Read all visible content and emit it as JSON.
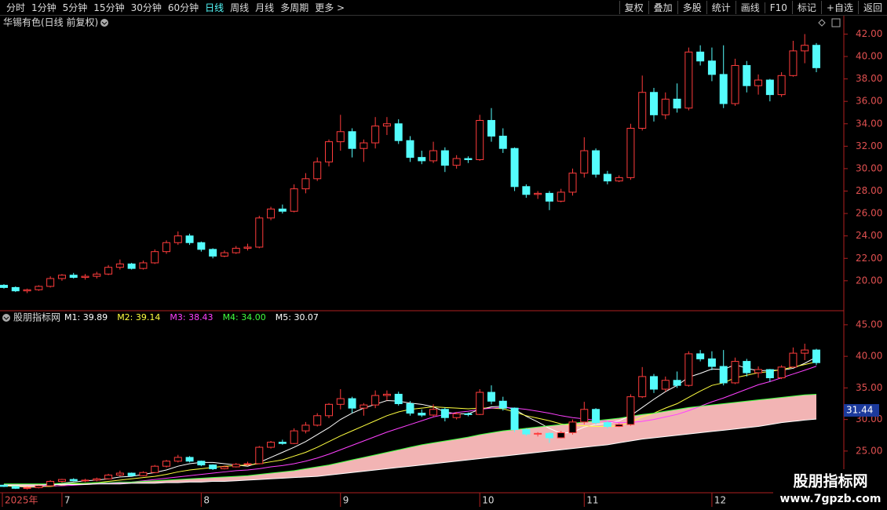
{
  "toolbar": {
    "left": [
      "分时",
      "1分钟",
      "5分钟",
      "15分钟",
      "30分钟",
      "60分钟",
      "日线",
      "周线",
      "月线",
      "多周期",
      "更多 >"
    ],
    "active": "日线",
    "right": [
      "复权",
      "叠加",
      "多股",
      "统计",
      "画线",
      "F10",
      "标记",
      "+自选",
      "返回"
    ]
  },
  "chart_data": [
    {
      "type": "candlestick",
      "title": "华锡有色(日线 前复权)",
      "up_color": "#ff3c3c",
      "down_color": "#54fcfc",
      "ylim": [
        17.4,
        43.5
      ],
      "yticks": [
        {
          "value": 20,
          "label": "20.00"
        },
        {
          "value": 22,
          "label": "22.00"
        },
        {
          "value": 24,
          "label": "24.00"
        },
        {
          "value": 26,
          "label": "26.00"
        },
        {
          "value": 28,
          "label": "28.00"
        },
        {
          "value": 30,
          "label": "30.00"
        },
        {
          "value": 32,
          "label": "32.00"
        },
        {
          "value": 34,
          "label": "34.00"
        },
        {
          "value": 36,
          "label": "36.00"
        },
        {
          "value": 38,
          "label": "38.00"
        },
        {
          "value": 40,
          "label": "40.00"
        },
        {
          "value": 42,
          "label": "42.00"
        }
      ],
      "categories": [
        "2025年",
        null,
        null,
        null,
        null,
        "7",
        null,
        null,
        null,
        null,
        null,
        null,
        null,
        null,
        null,
        null,
        null,
        "8",
        null,
        null,
        null,
        null,
        null,
        null,
        null,
        null,
        null,
        null,
        null,
        "9",
        null,
        null,
        null,
        null,
        null,
        null,
        null,
        null,
        null,
        null,
        null,
        "10",
        null,
        null,
        null,
        null,
        null,
        null,
        null,
        null,
        "11",
        null,
        null,
        null,
        null,
        null,
        null,
        null,
        null,
        null,
        null,
        "12",
        null,
        null,
        null,
        null,
        null,
        null,
        null,
        null,
        null
      ],
      "ohlc": [
        [
          19.6,
          19.7,
          19.3,
          19.4
        ],
        [
          19.4,
          19.5,
          19.0,
          19.1
        ],
        [
          19.1,
          19.3,
          18.9,
          19.2
        ],
        [
          19.2,
          19.6,
          19.1,
          19.5
        ],
        [
          19.5,
          20.4,
          19.4,
          20.2
        ],
        [
          20.2,
          20.6,
          20.0,
          20.5
        ],
        [
          20.5,
          20.7,
          20.2,
          20.3
        ],
        [
          20.3,
          20.6,
          20.1,
          20.4
        ],
        [
          20.4,
          20.8,
          20.2,
          20.6
        ],
        [
          20.6,
          21.4,
          20.5,
          21.2
        ],
        [
          21.2,
          21.9,
          21.0,
          21.5
        ],
        [
          21.5,
          21.6,
          21.0,
          21.1
        ],
        [
          21.1,
          21.8,
          21.0,
          21.6
        ],
        [
          21.6,
          22.8,
          21.5,
          22.6
        ],
        [
          22.6,
          23.6,
          22.4,
          23.4
        ],
        [
          23.4,
          24.4,
          23.2,
          24.0
        ],
        [
          24.0,
          24.2,
          23.2,
          23.4
        ],
        [
          23.4,
          23.5,
          22.6,
          22.8
        ],
        [
          22.8,
          22.9,
          22.0,
          22.2
        ],
        [
          22.2,
          22.7,
          22.1,
          22.5
        ],
        [
          22.5,
          23.1,
          22.4,
          22.9
        ],
        [
          22.9,
          23.3,
          22.7,
          23.0
        ],
        [
          23.0,
          25.8,
          22.9,
          25.6
        ],
        [
          25.6,
          26.6,
          25.4,
          26.4
        ],
        [
          26.4,
          26.8,
          26.0,
          26.2
        ],
        [
          26.2,
          28.6,
          26.1,
          28.2
        ],
        [
          28.2,
          29.6,
          27.8,
          29.1
        ],
        [
          29.1,
          31.0,
          28.9,
          30.6
        ],
        [
          30.6,
          32.6,
          30.2,
          32.4
        ],
        [
          32.4,
          34.8,
          31.6,
          33.3
        ],
        [
          33.3,
          33.6,
          31.0,
          31.8
        ],
        [
          31.8,
          32.6,
          30.6,
          32.3
        ],
        [
          32.3,
          34.6,
          31.8,
          33.8
        ],
        [
          33.8,
          34.6,
          33.0,
          34.0
        ],
        [
          34.0,
          34.4,
          32.2,
          32.5
        ],
        [
          32.5,
          32.9,
          30.6,
          31.0
        ],
        [
          31.0,
          31.6,
          30.4,
          30.7
        ],
        [
          30.7,
          32.4,
          30.5,
          31.6
        ],
        [
          31.6,
          31.9,
          29.7,
          30.3
        ],
        [
          30.3,
          31.2,
          30.0,
          30.9
        ],
        [
          30.9,
          31.1,
          30.5,
          30.8
        ],
        [
          30.8,
          34.8,
          30.7,
          34.3
        ],
        [
          34.3,
          35.4,
          32.4,
          32.9
        ],
        [
          32.9,
          33.6,
          31.4,
          31.8
        ],
        [
          31.8,
          31.9,
          28.0,
          28.4
        ],
        [
          28.4,
          28.6,
          27.4,
          27.7
        ],
        [
          27.7,
          28.0,
          27.3,
          27.8
        ],
        [
          27.8,
          28.0,
          26.3,
          27.1
        ],
        [
          27.1,
          28.2,
          27.0,
          27.9
        ],
        [
          27.9,
          30.0,
          27.6,
          29.6
        ],
        [
          29.6,
          32.8,
          29.2,
          31.6
        ],
        [
          31.6,
          31.8,
          29.2,
          29.5
        ],
        [
          29.5,
          29.8,
          28.6,
          28.9
        ],
        [
          28.9,
          29.4,
          28.8,
          29.2
        ],
        [
          29.2,
          34.0,
          29.0,
          33.6
        ],
        [
          33.6,
          38.3,
          33.4,
          36.8
        ],
        [
          36.8,
          37.2,
          34.2,
          34.8
        ],
        [
          34.8,
          36.8,
          34.4,
          36.2
        ],
        [
          36.2,
          37.6,
          35.0,
          35.4
        ],
        [
          35.4,
          40.8,
          35.2,
          40.4
        ],
        [
          40.4,
          41.0,
          39.2,
          39.6
        ],
        [
          39.6,
          40.8,
          37.8,
          38.4
        ],
        [
          38.4,
          41.0,
          35.4,
          35.8
        ],
        [
          35.8,
          39.8,
          35.6,
          39.2
        ],
        [
          39.2,
          39.6,
          36.8,
          37.4
        ],
        [
          37.4,
          38.4,
          36.6,
          37.9
        ],
        [
          37.9,
          38.0,
          36.0,
          36.6
        ],
        [
          36.6,
          38.6,
          36.4,
          38.3
        ],
        [
          38.3,
          41.4,
          38.2,
          40.5
        ],
        [
          40.5,
          42.0,
          39.4,
          41.0
        ],
        [
          41.0,
          41.2,
          38.6,
          39.0
        ]
      ]
    },
    {
      "type": "indicator",
      "title": "股朋指标网",
      "ylim": [
        18.4,
        47.1
      ],
      "yticks": [
        {
          "value": 25,
          "label": "25.00"
        },
        {
          "value": 30,
          "label": "30.00"
        },
        {
          "value": 35,
          "label": "35.00"
        },
        {
          "value": 40,
          "label": "40.00"
        },
        {
          "value": 45,
          "label": "45.00"
        }
      ],
      "value_tag": {
        "value": 31.44,
        "label": "31.44"
      },
      "series": [
        {
          "name": "M1: 39.89",
          "color": "#ffffff",
          "values": [
            19.5,
            19.4,
            19.3,
            19.3,
            19.5,
            19.9,
            20.1,
            20.3,
            20.4,
            20.6,
            20.9,
            21.0,
            21.3,
            21.6,
            22.0,
            22.6,
            23.0,
            23.2,
            23.2,
            23.0,
            22.8,
            22.6,
            23.2,
            24.0,
            24.8,
            25.6,
            26.5,
            27.6,
            28.7,
            30.0,
            31.0,
            31.8,
            32.4,
            33.0,
            32.9,
            32.6,
            32.4,
            32.0,
            31.2,
            30.9,
            30.9,
            31.6,
            32.0,
            32.1,
            31.6,
            30.5,
            29.6,
            28.6,
            27.8,
            28.0,
            28.8,
            29.2,
            29.4,
            29.8,
            30.6,
            31.9,
            33.2,
            34.4,
            35.4,
            36.7,
            37.3,
            38.0,
            37.9,
            38.7,
            38.1,
            37.7,
            37.8,
            37.8,
            38.1,
            38.9,
            39.89
          ]
        },
        {
          "name": "M2: 39.14",
          "color": "#ffff40",
          "values": [
            19.5,
            19.5,
            19.4,
            19.4,
            19.4,
            19.6,
            19.8,
            19.9,
            20.0,
            20.2,
            20.4,
            20.6,
            20.8,
            21.0,
            21.3,
            21.7,
            22.0,
            22.2,
            22.4,
            22.6,
            22.7,
            22.8,
            23.0,
            23.3,
            23.6,
            24.2,
            24.8,
            25.6,
            26.5,
            27.4,
            28.2,
            29.0,
            29.8,
            30.6,
            31.2,
            31.6,
            31.8,
            32.0,
            31.9,
            31.8,
            31.7,
            31.8,
            31.8,
            31.7,
            31.2,
            30.6,
            30.2,
            29.8,
            29.3,
            29.1,
            29.0,
            28.9,
            28.9,
            29.0,
            29.6,
            30.4,
            31.0,
            31.8,
            32.5,
            33.5,
            34.5,
            35.4,
            35.8,
            36.6,
            37.0,
            37.4,
            37.6,
            37.9,
            38.3,
            38.7,
            39.14
          ]
        },
        {
          "name": "M3: 38.43",
          "color": "#ff40ff",
          "values": [
            19.6,
            19.6,
            19.5,
            19.5,
            19.5,
            19.5,
            19.6,
            19.7,
            19.8,
            19.9,
            20.0,
            20.1,
            20.3,
            20.5,
            20.7,
            20.9,
            21.1,
            21.3,
            21.5,
            21.7,
            21.9,
            22.0,
            22.2,
            22.5,
            22.7,
            23.0,
            23.4,
            23.9,
            24.5,
            25.2,
            25.9,
            26.6,
            27.3,
            28.0,
            28.6,
            29.2,
            29.8,
            30.4,
            30.8,
            31.1,
            31.3,
            31.6,
            31.8,
            31.9,
            31.8,
            31.6,
            31.3,
            31.0,
            30.6,
            30.3,
            30.1,
            29.9,
            29.7,
            29.5,
            29.5,
            29.7,
            30.0,
            30.4,
            30.8,
            31.4,
            32.1,
            32.8,
            33.4,
            34.1,
            34.8,
            35.5,
            36.0,
            36.6,
            37.2,
            37.8,
            38.43
          ]
        },
        {
          "name": "M4: 34.00",
          "color": "#40ff40",
          "fill": "#f2b4b4",
          "values": [
            19.8,
            19.8,
            19.8,
            19.8,
            19.8,
            19.9,
            19.9,
            19.9,
            20.0,
            20.0,
            20.1,
            20.1,
            20.2,
            20.3,
            20.4,
            20.5,
            20.6,
            20.7,
            20.8,
            20.9,
            21.0,
            21.1,
            21.3,
            21.5,
            21.7,
            21.9,
            22.2,
            22.5,
            22.8,
            23.2,
            23.6,
            24.0,
            24.4,
            24.8,
            25.2,
            25.6,
            26.0,
            26.3,
            26.6,
            26.9,
            27.2,
            27.6,
            27.9,
            28.2,
            28.4,
            28.6,
            28.8,
            29.0,
            29.2,
            29.4,
            29.6,
            29.8,
            30.0,
            30.2,
            30.5,
            30.8,
            31.0,
            31.3,
            31.6,
            31.9,
            32.1,
            32.3,
            32.5,
            32.7,
            32.9,
            33.1,
            33.3,
            33.5,
            33.7,
            33.9,
            34.0
          ]
        },
        {
          "name": "M5: 30.07",
          "color": "#ffffff",
          "values": [
            19.6,
            19.6,
            19.6,
            19.6,
            19.7,
            19.7,
            19.7,
            19.7,
            19.8,
            19.8,
            19.8,
            19.9,
            19.9,
            19.9,
            20.0,
            20.0,
            20.1,
            20.1,
            20.2,
            20.2,
            20.3,
            20.4,
            20.5,
            20.6,
            20.7,
            20.8,
            20.9,
            21.0,
            21.2,
            21.4,
            21.6,
            21.8,
            22.0,
            22.2,
            22.4,
            22.6,
            22.8,
            23.0,
            23.2,
            23.4,
            23.6,
            23.8,
            24.0,
            24.2,
            24.4,
            24.6,
            24.8,
            25.0,
            25.2,
            25.4,
            25.6,
            25.8,
            26.0,
            26.3,
            26.6,
            26.9,
            27.1,
            27.3,
            27.5,
            27.7,
            27.9,
            28.1,
            28.3,
            28.5,
            28.7,
            28.9,
            29.2,
            29.5,
            29.7,
            29.9,
            30.07
          ]
        }
      ]
    }
  ],
  "watermark": {
    "name": "股朋指标网",
    "url": "www.7gpzb.com"
  }
}
